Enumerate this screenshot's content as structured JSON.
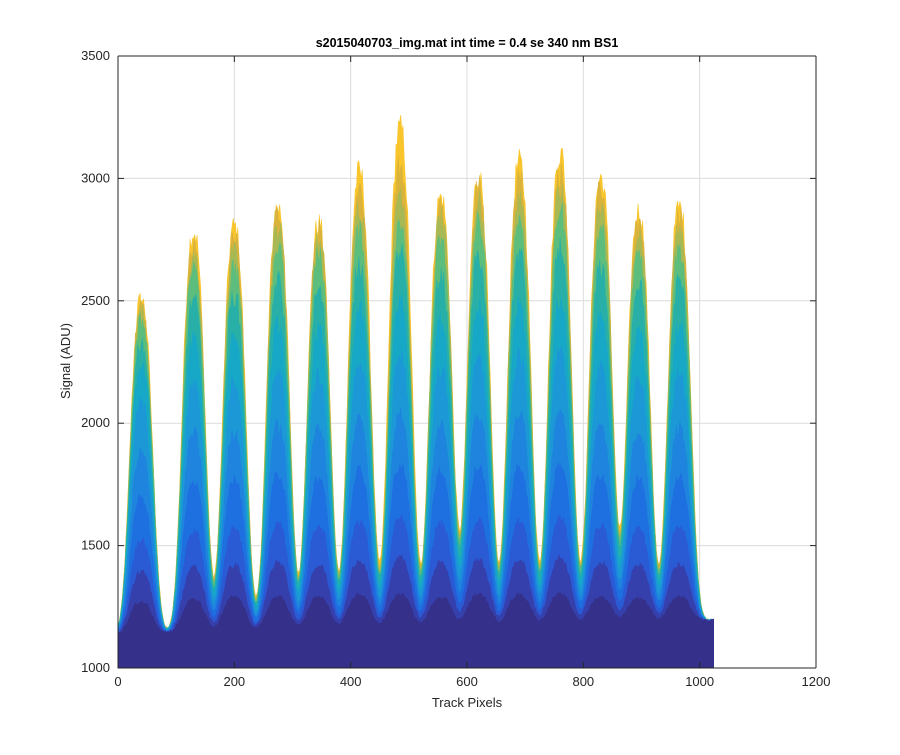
{
  "chart_data": {
    "type": "area",
    "title": "s2015040703_img.mat int time = 0.4 se  340 nm BS1",
    "xlabel": "Track Pixels",
    "ylabel": "Signal (ADU)",
    "xlim": [
      0,
      1200
    ],
    "ylim": [
      1000,
      3500
    ],
    "x_ticks": [
      0,
      200,
      400,
      600,
      800,
      1000,
      1200
    ],
    "y_ticks": [
      1000,
      1500,
      2000,
      2500,
      3000,
      3500
    ],
    "grid": true,
    "x_extent": [
      0,
      1024
    ],
    "baseline": {
      "start": 1140,
      "end": 1195
    },
    "peak_centers": [
      40,
      130,
      200,
      275,
      345,
      415,
      485,
      555,
      620,
      690,
      760,
      830,
      895,
      965
    ],
    "peak_width": 60,
    "series": [
      {
        "color": "#f9c52c",
        "peaks": [
          2500,
          2780,
          2800,
          2880,
          2810,
          3020,
          3200,
          2920,
          3000,
          3060,
          3100,
          3000,
          2860,
          2880
        ]
      },
      {
        "color": "#d9b33c",
        "peaks": [
          2470,
          2720,
          2750,
          2850,
          2780,
          2960,
          3050,
          2880,
          2960,
          3000,
          3020,
          2950,
          2820,
          2840
        ]
      },
      {
        "color": "#a8b855",
        "peaks": [
          2450,
          2680,
          2700,
          2800,
          2740,
          2880,
          2950,
          2830,
          2900,
          2920,
          2950,
          2880,
          2780,
          2790
        ]
      },
      {
        "color": "#5dbd7c",
        "peaks": [
          2420,
          2630,
          2640,
          2720,
          2680,
          2780,
          2830,
          2740,
          2820,
          2830,
          2870,
          2790,
          2700,
          2710
        ]
      },
      {
        "color": "#28b0a8",
        "peaks": [
          2330,
          2500,
          2520,
          2580,
          2540,
          2650,
          2700,
          2600,
          2680,
          2690,
          2720,
          2640,
          2570,
          2580
        ]
      },
      {
        "color": "#16a8c6",
        "peaks": [
          2230,
          2340,
          2360,
          2400,
          2380,
          2460,
          2500,
          2420,
          2470,
          2480,
          2500,
          2430,
          2380,
          2400
        ]
      },
      {
        "color": "#1c98d6",
        "peaks": [
          2080,
          2160,
          2170,
          2200,
          2190,
          2250,
          2280,
          2220,
          2260,
          2270,
          2280,
          2220,
          2180,
          2200
        ]
      },
      {
        "color": "#1e84de",
        "peaks": [
          1880,
          1960,
          1960,
          1990,
          1980,
          2020,
          2040,
          2000,
          2030,
          2030,
          2040,
          1990,
          1960,
          1980
        ]
      },
      {
        "color": "#1e6fe0",
        "peaks": [
          1700,
          1760,
          1770,
          1790,
          1780,
          1810,
          1830,
          1800,
          1820,
          1820,
          1830,
          1790,
          1770,
          1780
        ]
      },
      {
        "color": "#2a5ad4",
        "peaks": [
          1520,
          1560,
          1570,
          1590,
          1580,
          1600,
          1610,
          1590,
          1600,
          1600,
          1610,
          1580,
          1570,
          1580
        ]
      },
      {
        "color": "#3540ad",
        "peaks": [
          1390,
          1410,
          1420,
          1430,
          1420,
          1440,
          1450,
          1430,
          1440,
          1440,
          1450,
          1430,
          1420,
          1420
        ]
      },
      {
        "color": "#35308a",
        "peaks": [
          1270,
          1280,
          1290,
          1290,
          1290,
          1300,
          1300,
          1290,
          1300,
          1300,
          1300,
          1290,
          1285,
          1290
        ]
      }
    ]
  }
}
